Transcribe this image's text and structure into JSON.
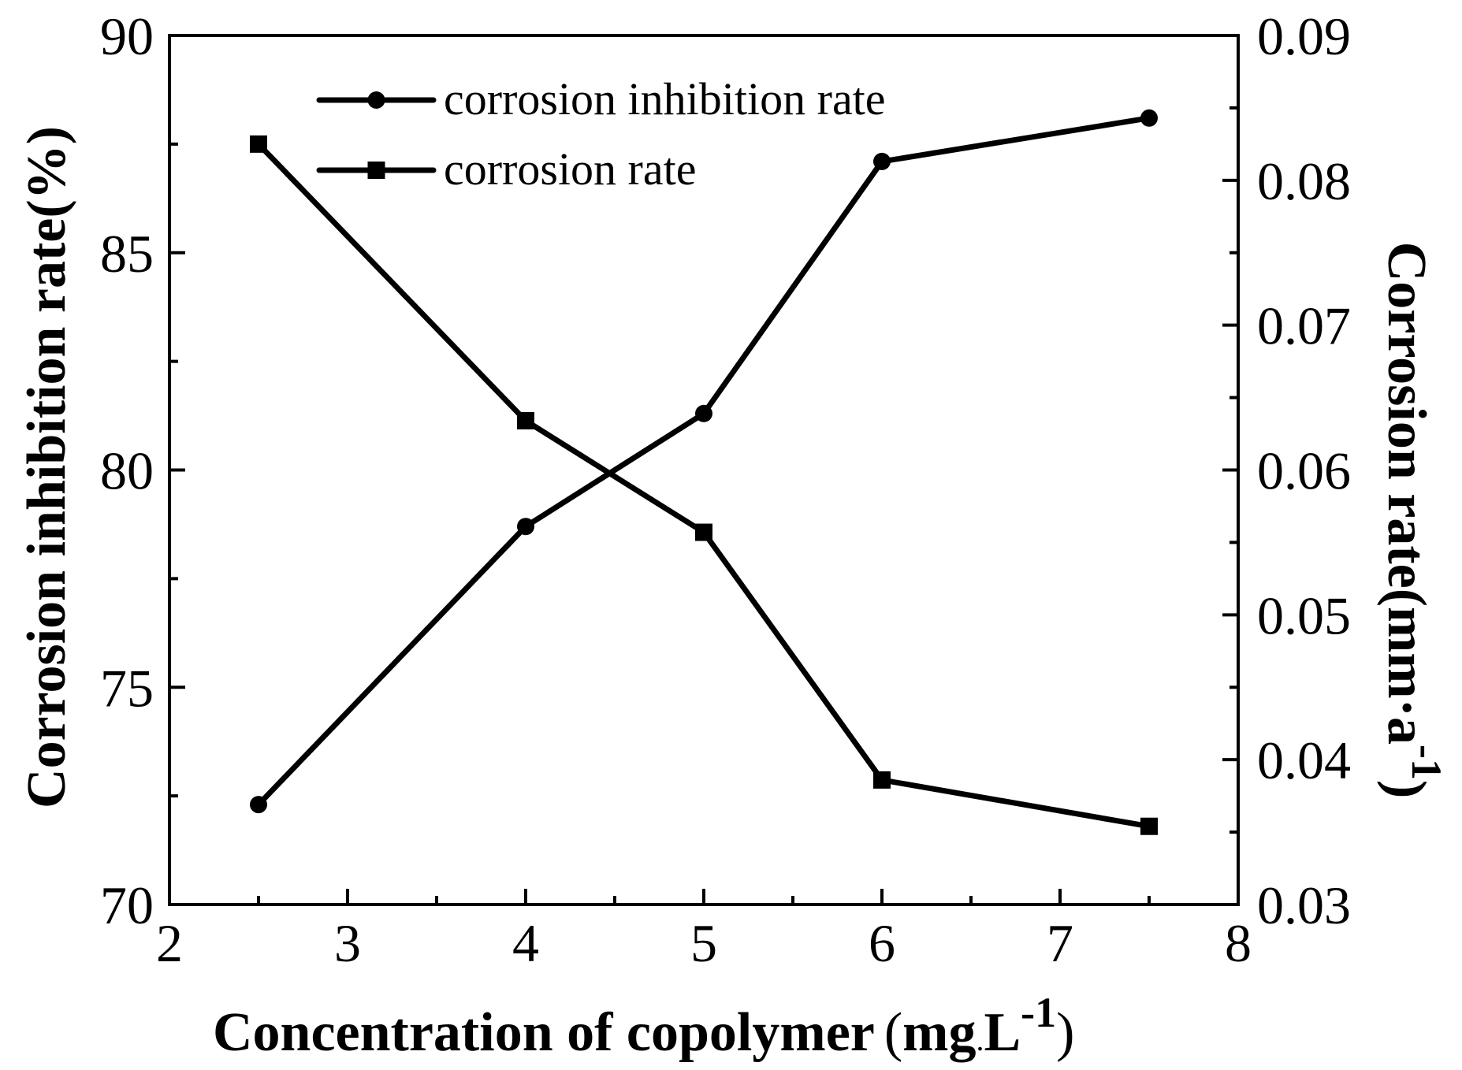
{
  "chart_data": {
    "type": "line",
    "title": "",
    "xlabel": "Concentration of copolymer",
    "xlabel_unit_open": "(",
    "xlabel_unit_main": "mg",
    "xlabel_unit_dot": ".",
    "xlabel_unit_L": "L",
    "xlabel_unit_sup": "-1",
    "xlabel_unit_close": ")",
    "ylabel_left": "Corrosion inhibition rate(%)",
    "ylabel_right_main": "Corrosion rate(mm·a",
    "ylabel_right_sup": "-1",
    "ylabel_right_close": ")",
    "xlim": [
      2,
      8
    ],
    "ylim_left": [
      70,
      90
    ],
    "ylim_right": [
      0.03,
      0.09
    ],
    "x_ticks": [
      "2",
      "3",
      "4",
      "5",
      "6",
      "7",
      "8"
    ],
    "x_tick_values": [
      2,
      3,
      4,
      5,
      6,
      7,
      8
    ],
    "y_left_ticks": [
      "70",
      "75",
      "80",
      "85",
      "90"
    ],
    "y_left_tick_values": [
      70,
      75,
      80,
      85,
      90
    ],
    "y_right_ticks": [
      "0.03",
      "0.04",
      "0.05",
      "0.06",
      "0.07",
      "0.08",
      "0.09"
    ],
    "y_right_tick_values": [
      0.03,
      0.04,
      0.05,
      0.06,
      0.07,
      0.08,
      0.09
    ],
    "legend_position": "top-left",
    "grid": false,
    "series": [
      {
        "name": "corrosion inhibition rate",
        "axis": "left",
        "marker": "circle",
        "color": "#000000",
        "x": [
          2.5,
          4,
          5,
          6,
          7.5
        ],
        "values": [
          72.3,
          78.7,
          81.3,
          87.1,
          88.1
        ]
      },
      {
        "name": "corrosion rate",
        "axis": "right",
        "marker": "square",
        "color": "#000000",
        "x": [
          2.5,
          4,
          5,
          6,
          7.5
        ],
        "values": [
          0.0825,
          0.0634,
          0.0557,
          0.0386,
          0.0354
        ]
      }
    ]
  }
}
